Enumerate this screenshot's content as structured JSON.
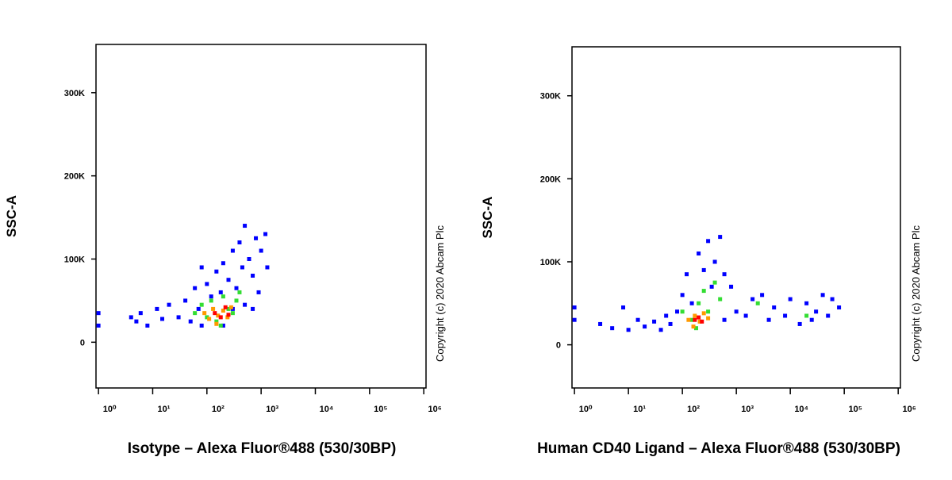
{
  "chart_data": [
    {
      "type": "scatter",
      "xlabel": "Isotype – Alexa Fluor®488 (530/30BP)",
      "ylabel": "SSC-A",
      "annotation": "Copyright (c) 2020 Abcam Plc",
      "xscale": "log",
      "xlim": [
        0.9,
        1100000
      ],
      "ylim": [
        -55000,
        358000
      ],
      "xticks": [
        {
          "value": 1,
          "label": "10⁰"
        },
        {
          "value": 10,
          "label": "10¹"
        },
        {
          "value": 100,
          "label": "10²"
        },
        {
          "value": 1000,
          "label": "10³"
        },
        {
          "value": 10000,
          "label": "10⁴"
        },
        {
          "value": 100000,
          "label": "10⁵"
        },
        {
          "value": 1000000,
          "label": "10⁶"
        }
      ],
      "yticks": [
        0,
        {
          "value": 100000,
          "label": "100K"
        },
        {
          "value": 200000,
          "label": "200K"
        },
        {
          "value": 300000,
          "label": "300K"
        }
      ],
      "series": [
        {
          "color": "#0000ff",
          "x": [
            4,
            5,
            6,
            8,
            12,
            15,
            20,
            30,
            40,
            50,
            60,
            70,
            80,
            100,
            120,
            150,
            180,
            200,
            250,
            300,
            350,
            400,
            450,
            500,
            600,
            700,
            800,
            900,
            1000,
            1200,
            1300,
            80,
            300,
            500,
            700,
            200,
            1,
            1
          ],
          "values": [
            30000,
            25000,
            35000,
            20000,
            40000,
            28000,
            45000,
            30000,
            50000,
            25000,
            65000,
            40000,
            20000,
            70000,
            55000,
            85000,
            60000,
            95000,
            75000,
            110000,
            65000,
            120000,
            90000,
            140000,
            100000,
            80000,
            125000,
            60000,
            110000,
            130000,
            90000,
            90000,
            40000,
            45000,
            40000,
            20000,
            35000,
            20000
          ]
        },
        {
          "color": "#33dd33",
          "x": [
            60,
            80,
            100,
            120,
            150,
            200,
            250,
            300,
            350,
            180,
            400
          ],
          "values": [
            35000,
            45000,
            30000,
            50000,
            25000,
            55000,
            40000,
            35000,
            50000,
            20000,
            60000
          ]
        },
        {
          "color": "#ff9900",
          "x": [
            90,
            110,
            130,
            160,
            200,
            240,
            280,
            150
          ],
          "values": [
            35000,
            28000,
            40000,
            32000,
            38000,
            30000,
            42000,
            22000
          ]
        },
        {
          "color": "#ff0000",
          "x": [
            140,
            180,
            220,
            250
          ],
          "values": [
            35000,
            30000,
            42000,
            33000
          ]
        }
      ]
    },
    {
      "type": "scatter",
      "xlabel": "Human CD40 Ligand – Alexa Fluor®488 (530/30BP)",
      "ylabel": "SSC-A",
      "annotation": "Copyright (c) 2020 Abcam Plc",
      "xscale": "log",
      "xlim": [
        0.9,
        1100000
      ],
      "ylim": [
        -52000,
        359000
      ],
      "xticks": [
        {
          "value": 1,
          "label": "10⁰"
        },
        {
          "value": 10,
          "label": "10¹"
        },
        {
          "value": 100,
          "label": "10²"
        },
        {
          "value": 1000,
          "label": "10³"
        },
        {
          "value": 10000,
          "label": "10⁴"
        },
        {
          "value": 100000,
          "label": "10⁵"
        },
        {
          "value": 1000000,
          "label": "10⁶"
        }
      ],
      "yticks": [
        0,
        {
          "value": 100000,
          "label": "100K"
        },
        {
          "value": 200000,
          "label": "200K"
        },
        {
          "value": 300000,
          "label": "300K"
        }
      ],
      "series": [
        {
          "color": "#0000ff",
          "x": [
            3,
            5,
            8,
            10,
            15,
            20,
            30,
            40,
            50,
            60,
            80,
            100,
            120,
            150,
            200,
            250,
            300,
            350,
            400,
            500,
            600,
            800,
            1000,
            1500,
            2000,
            3000,
            4000,
            5000,
            8000,
            10000,
            15000,
            20000,
            30000,
            40000,
            50000,
            60000,
            80000,
            25000,
            600,
            1,
            1
          ],
          "values": [
            25000,
            20000,
            45000,
            18000,
            30000,
            22000,
            28000,
            18000,
            35000,
            25000,
            40000,
            60000,
            85000,
            50000,
            110000,
            90000,
            125000,
            70000,
            100000,
            130000,
            85000,
            70000,
            40000,
            35000,
            55000,
            60000,
            30000,
            45000,
            35000,
            55000,
            25000,
            50000,
            40000,
            60000,
            35000,
            55000,
            45000,
            30000,
            30000,
            30000,
            45000
          ]
        },
        {
          "color": "#33dd33",
          "x": [
            100,
            150,
            200,
            250,
            300,
            400,
            180,
            2500,
            20000,
            500
          ],
          "values": [
            40000,
            30000,
            50000,
            65000,
            40000,
            75000,
            20000,
            50000,
            35000,
            55000
          ]
        },
        {
          "color": "#ff9900",
          "x": [
            130,
            170,
            210,
            250,
            160,
            300
          ],
          "values": [
            30000,
            35000,
            28000,
            38000,
            22000,
            32000
          ]
        },
        {
          "color": "#ff0000",
          "x": [
            170,
            200,
            230
          ],
          "values": [
            30000,
            33000,
            28000
          ]
        }
      ]
    }
  ]
}
